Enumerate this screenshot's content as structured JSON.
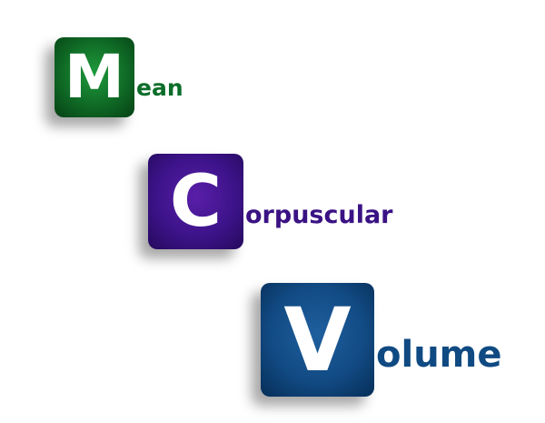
{
  "words": [
    {
      "initial": "M",
      "rest": "ean",
      "color": "#0b6d2a",
      "tile_color": "#0f6a25"
    },
    {
      "initial": "C",
      "rest": "orpuscular",
      "color": "#3a1284",
      "tile_color": "#3d138a"
    },
    {
      "initial": "V",
      "rest": "olume",
      "color": "#0f4a82",
      "tile_color": "#124b84"
    }
  ]
}
